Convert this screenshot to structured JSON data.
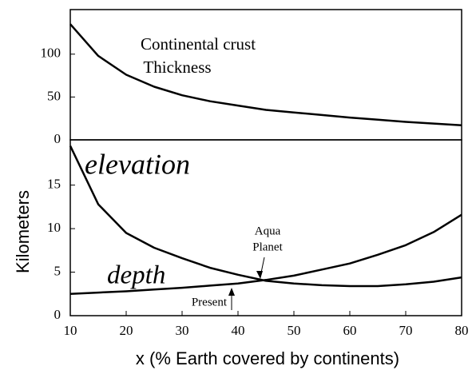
{
  "chart_data": [
    {
      "type": "line",
      "x": [
        10,
        15,
        20,
        25,
        30,
        35,
        40,
        45,
        50,
        55,
        60,
        65,
        70,
        75,
        80
      ],
      "series": [
        {
          "color": "#000000",
          "values": [
            135,
            98,
            76,
            62,
            52,
            45,
            40,
            35,
            32,
            29,
            26,
            23.5,
            21,
            19,
            17
          ]
        }
      ],
      "xlim": [
        10,
        80
      ],
      "ylim": [
        0,
        152
      ],
      "yticks": [
        0,
        50,
        100
      ],
      "annotations": [
        "Continental crust",
        "Thickness"
      ]
    },
    {
      "type": "line",
      "x": [
        10,
        15,
        20,
        25,
        30,
        35,
        40,
        45,
        50,
        55,
        60,
        65,
        70,
        75,
        80
      ],
      "series": [
        {
          "name": "elevation",
          "color": "#000000",
          "values": [
            19.5,
            12.8,
            9.5,
            7.8,
            6.6,
            5.5,
            4.7,
            4.0,
            3.7,
            3.5,
            3.4,
            3.4,
            3.6,
            3.9,
            4.4
          ]
        },
        {
          "name": "depth",
          "color": "#000000",
          "values": [
            2.5,
            2.65,
            2.8,
            3.0,
            3.2,
            3.45,
            3.7,
            4.1,
            4.6,
            5.3,
            6.0,
            7.0,
            8.1,
            9.6,
            11.6
          ]
        }
      ],
      "xlim": [
        10,
        80
      ],
      "ylim": [
        0,
        20.2
      ],
      "yticks": [
        0,
        5,
        10,
        15
      ],
      "xticks": [
        10,
        20,
        30,
        40,
        50,
        60,
        70,
        80
      ],
      "xlabel": "x (% Earth covered by continents)",
      "ylabel": "Kilometers",
      "annotations": [
        "Aqua",
        "Planet",
        "Present"
      ]
    }
  ]
}
